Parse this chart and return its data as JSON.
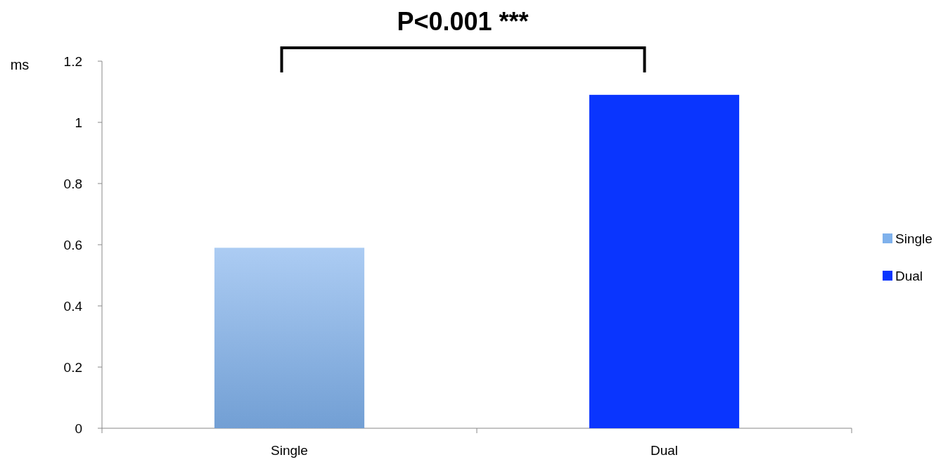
{
  "chart_data": {
    "type": "bar",
    "ylabel": "ms",
    "categories": [
      "Single",
      "Dual"
    ],
    "series": [
      {
        "name": "Single",
        "color": "#7fb1ec",
        "values": [
          0.59,
          null
        ]
      },
      {
        "name": "Dual",
        "color": "#0a35fe",
        "values": [
          null,
          1.09
        ]
      }
    ],
    "ylim": [
      0,
      1.2
    ],
    "yticks": [
      0,
      0.2,
      0.4,
      0.6,
      0.8,
      1,
      {
        "value": 1.2,
        "label": "1.2"
      }
    ],
    "grid": false,
    "legend": "right",
    "annotations": [
      "P<0.001 ***"
    ]
  }
}
